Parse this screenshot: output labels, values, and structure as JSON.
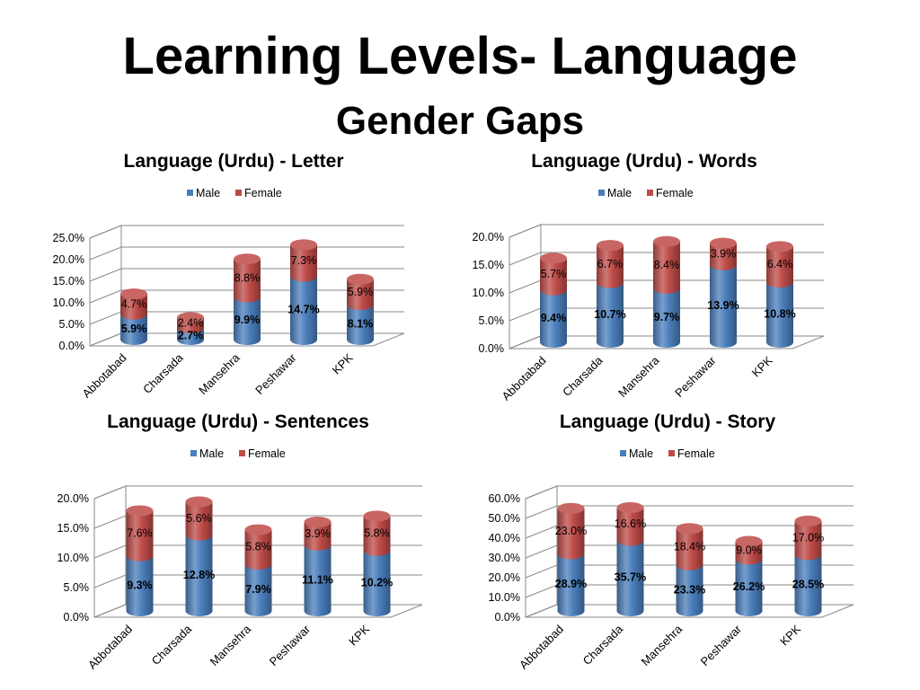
{
  "header": {
    "title": "Learning Levels- Language",
    "subtitle": "Gender Gaps"
  },
  "colors": {
    "male": "#4a7ebb",
    "female": "#be4b48"
  },
  "chart_data": [
    {
      "type": "bar",
      "stacked": true,
      "title": "Language (Urdu) - Letter",
      "categories": [
        "Abbotabad",
        "Charsada",
        "Mansehra",
        "Peshawar",
        "KPK"
      ],
      "series": [
        {
          "name": "Male",
          "values": [
            5.9,
            2.7,
            9.9,
            14.7,
            8.1
          ],
          "labels": [
            "5.9%",
            "2.7%",
            "9.9%",
            "14.7%",
            "8.1%"
          ]
        },
        {
          "name": "Female",
          "values": [
            4.7,
            2.4,
            8.8,
            7.3,
            5.9
          ],
          "labels": [
            "4.7%",
            "2.4%",
            "8.8%",
            "7.3%",
            "5.9%"
          ]
        }
      ],
      "yticks": [
        "0.0%",
        "5.0%",
        "10.0%",
        "15.0%",
        "20.0%",
        "25.0%"
      ],
      "ylim": [
        0,
        25
      ],
      "legend": "top",
      "grid": true
    },
    {
      "type": "bar",
      "stacked": true,
      "title": "Language (Urdu) - Words",
      "categories": [
        "Abbotabad",
        "Charsada",
        "Mansehra",
        "Peshawar",
        "KPK"
      ],
      "series": [
        {
          "name": "Male",
          "values": [
            9.4,
            10.7,
            9.7,
            13.9,
            10.8
          ],
          "labels": [
            "9.4%",
            "10.7%",
            "9.7%",
            "13.9%",
            "10.8%"
          ]
        },
        {
          "name": "Female",
          "values": [
            5.7,
            6.7,
            8.4,
            3.9,
            6.4
          ],
          "labels": [
            "5.7%",
            "6.7%",
            "8.4%",
            "3.9%",
            "6.4%"
          ]
        }
      ],
      "yticks": [
        "0.0%",
        "5.0%",
        "10.0%",
        "15.0%",
        "20.0%"
      ],
      "ylim": [
        0,
        20
      ],
      "legend": "top",
      "grid": true
    },
    {
      "type": "bar",
      "stacked": true,
      "title": "Language (Urdu) - Sentences",
      "categories": [
        "Abbotabad",
        "Charsada",
        "Mansehra",
        "Peshawar",
        "KPK"
      ],
      "series": [
        {
          "name": "Male",
          "values": [
            9.3,
            12.8,
            7.9,
            11.1,
            10.2
          ],
          "labels": [
            "9.3%",
            "12.8%",
            "7.9%",
            "11.1%",
            "10.2%"
          ]
        },
        {
          "name": "Female",
          "values": [
            7.6,
            5.6,
            5.8,
            3.9,
            5.8
          ],
          "labels": [
            "7.6%",
            "5.6%",
            "5.8%",
            "3.9%",
            "5.8%"
          ]
        }
      ],
      "yticks": [
        "0.0%",
        "5.0%",
        "10.0%",
        "15.0%",
        "20.0%"
      ],
      "ylim": [
        0,
        20
      ],
      "legend": "top",
      "grid": true
    },
    {
      "type": "bar",
      "stacked": true,
      "title": "Language (Urdu) - Story",
      "categories": [
        "Abbotabad",
        "Charsada",
        "Mansehra",
        "Peshawar",
        "KPK"
      ],
      "series": [
        {
          "name": "Male",
          "values": [
            28.9,
            35.7,
            23.3,
            26.2,
            28.5
          ],
          "labels": [
            "28.9%",
            "35.7%",
            "23.3%",
            "26.2%",
            "28.5%"
          ]
        },
        {
          "name": "Female",
          "values": [
            23.0,
            16.6,
            18.4,
            9.0,
            17.0
          ],
          "labels": [
            "23.0%",
            "16.6%",
            "18.4%",
            "9.0%",
            "17.0%"
          ]
        }
      ],
      "yticks": [
        "0.0%",
        "10.0%",
        "20.0%",
        "30.0%",
        "40.0%",
        "50.0%",
        "60.0%"
      ],
      "ylim": [
        0,
        60
      ],
      "legend": "top",
      "grid": true
    }
  ]
}
